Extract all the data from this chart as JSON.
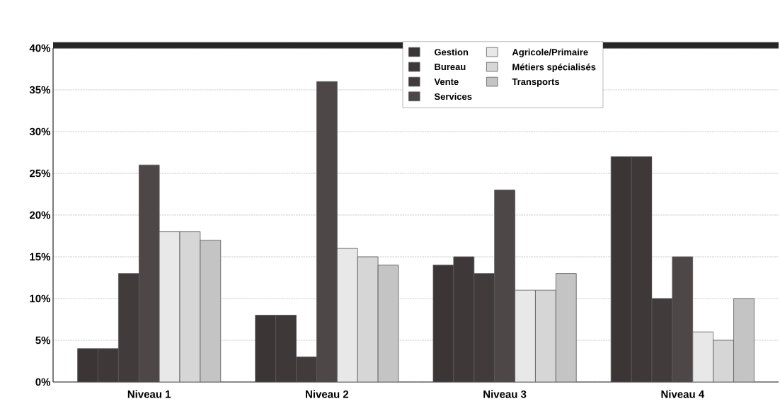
{
  "chart_data": {
    "type": "bar",
    "categories": [
      "Niveau 1",
      "Niveau 2",
      "Niveau 3",
      "Niveau 4"
    ],
    "series": [
      {
        "name": "Gestion",
        "color": "#3b3536",
        "values": [
          4,
          8,
          14,
          27
        ]
      },
      {
        "name": "Bureau",
        "color": "#3e3839",
        "values": [
          4,
          8,
          15,
          27
        ]
      },
      {
        "name": "Vente",
        "color": "#413b3c",
        "values": [
          13,
          3,
          13,
          10
        ]
      },
      {
        "name": "Services",
        "color": "#4d4748",
        "values": [
          26,
          36,
          23,
          15
        ]
      },
      {
        "name": "Agricole/Primaire",
        "color": "#e8e8e8",
        "values": [
          18,
          16,
          11,
          6
        ]
      },
      {
        "name": "Métiers spécialisés",
        "color": "#d6d6d6",
        "values": [
          18,
          15,
          11,
          5
        ]
      },
      {
        "name": "Transports",
        "color": "#c4c4c4",
        "values": [
          17,
          14,
          13,
          10
        ]
      }
    ],
    "ylim": [
      0,
      40
    ],
    "yticks": [
      {
        "value": 0,
        "label": "0%"
      },
      {
        "value": 5,
        "label": "5%"
      },
      {
        "value": 10,
        "label": "10%"
      },
      {
        "value": 15,
        "label": "15%"
      },
      {
        "value": 20,
        "label": "20%"
      },
      {
        "value": 25,
        "label": "25%"
      },
      {
        "value": 30,
        "label": "30%"
      },
      {
        "value": 35,
        "label": "35%"
      },
      {
        "value": 40,
        "label": "40%"
      }
    ],
    "grid": "y",
    "legend": "top"
  }
}
